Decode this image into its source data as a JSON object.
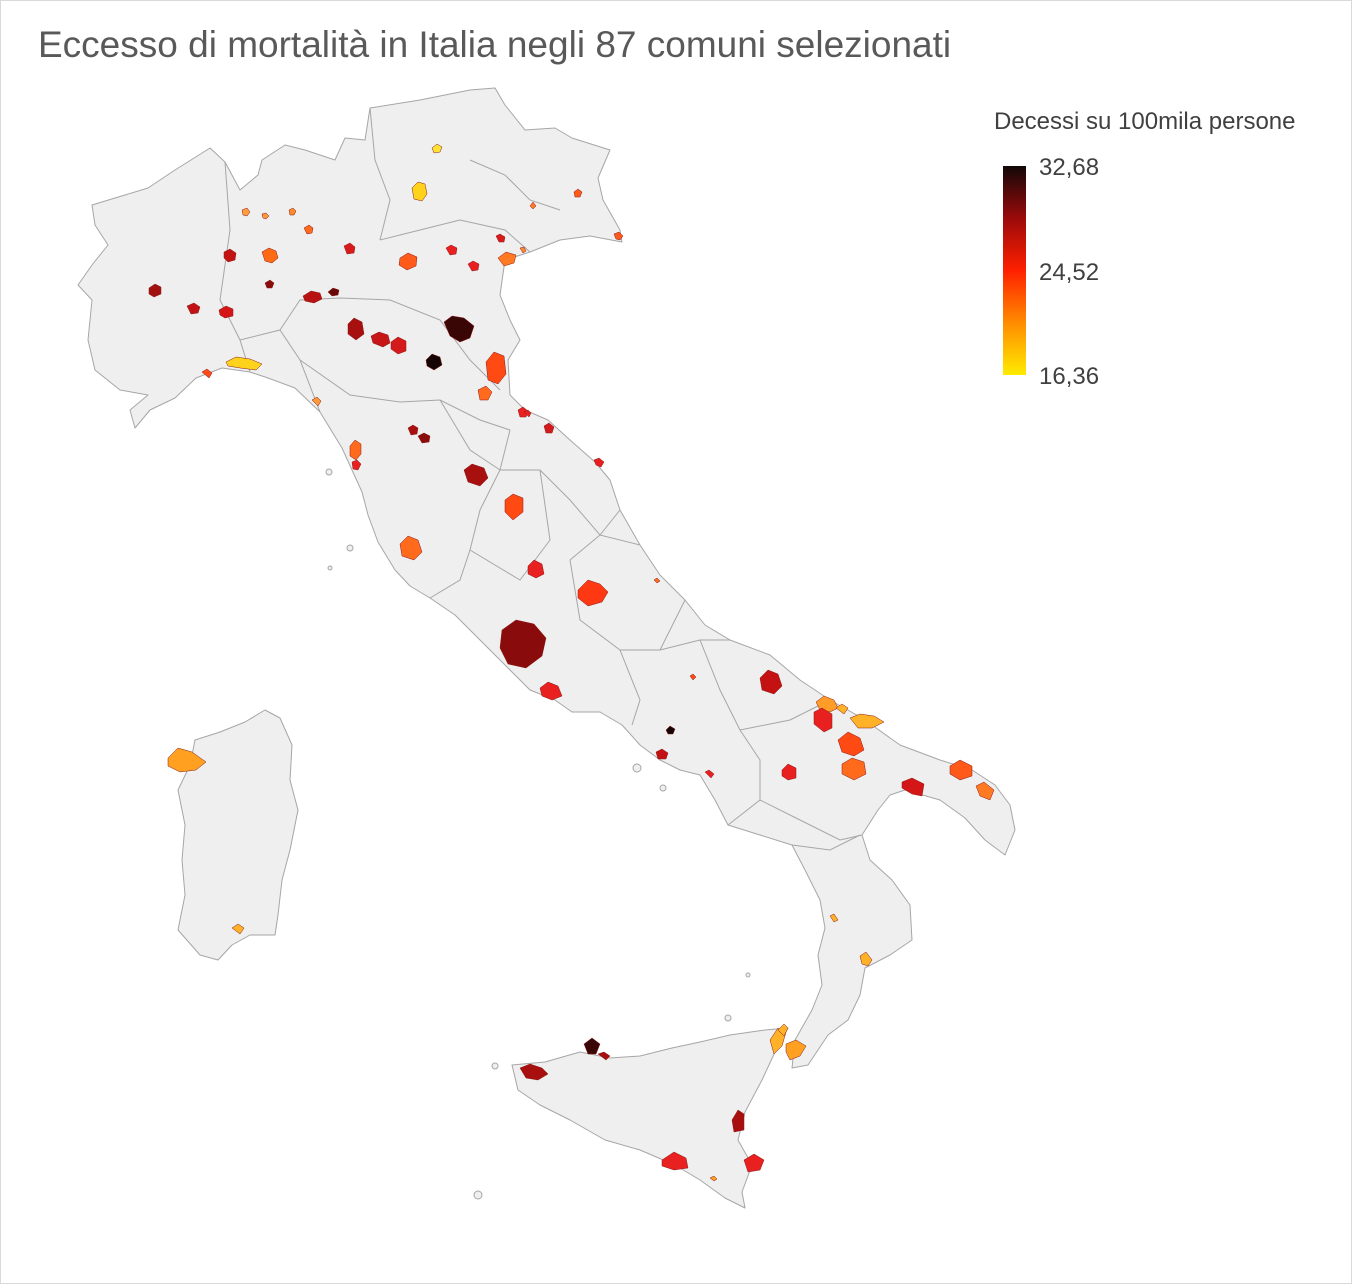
{
  "title": "Eccesso di mortalità in Italia negli 87 comuni selezionati",
  "legend": {
    "title": "Decessi su 100mila persone",
    "max_label": "32,68",
    "mid_label": "24,52",
    "min_label": "16,36",
    "min_value": 16.36,
    "mid_value": 24.52,
    "max_value": 32.68,
    "color_min": "#ffeb00",
    "color_low": "#ff8c00",
    "color_mid": "#ff2000",
    "color_high": "#9b0a0a",
    "color_max": "#120808"
  },
  "colors": {
    "land": "#efefef",
    "border": "#a6a6a6",
    "title": "#595959",
    "text": "#404040"
  }
}
